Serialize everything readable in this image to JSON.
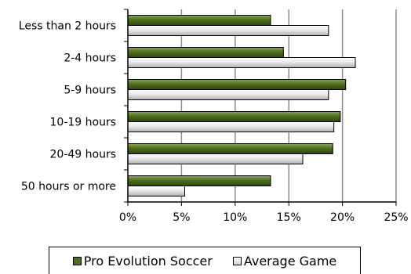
{
  "chart_data": {
    "type": "bar",
    "orientation": "horizontal",
    "categories": [
      "Less than 2 hours",
      "2-4 hours",
      "5-9 hours",
      "10-19 hours",
      "20-49 hours",
      "50 hours or more"
    ],
    "series": [
      {
        "name": "Pro Evolution Soccer",
        "values": [
          13.3,
          14.5,
          20.3,
          19.8,
          19.1,
          13.3
        ],
        "color": "#4f6e1e"
      },
      {
        "name": "Average Game",
        "values": [
          18.7,
          21.2,
          18.7,
          19.2,
          16.3,
          5.3
        ],
        "color": "#d9d9d9"
      }
    ],
    "xticks": [
      "0%",
      "5%",
      "10%",
      "15%",
      "20%",
      "25%"
    ],
    "xlim": [
      0,
      25
    ],
    "grid": "vertical",
    "legend_position": "bottom",
    "title": "",
    "xlabel": "",
    "ylabel": ""
  }
}
